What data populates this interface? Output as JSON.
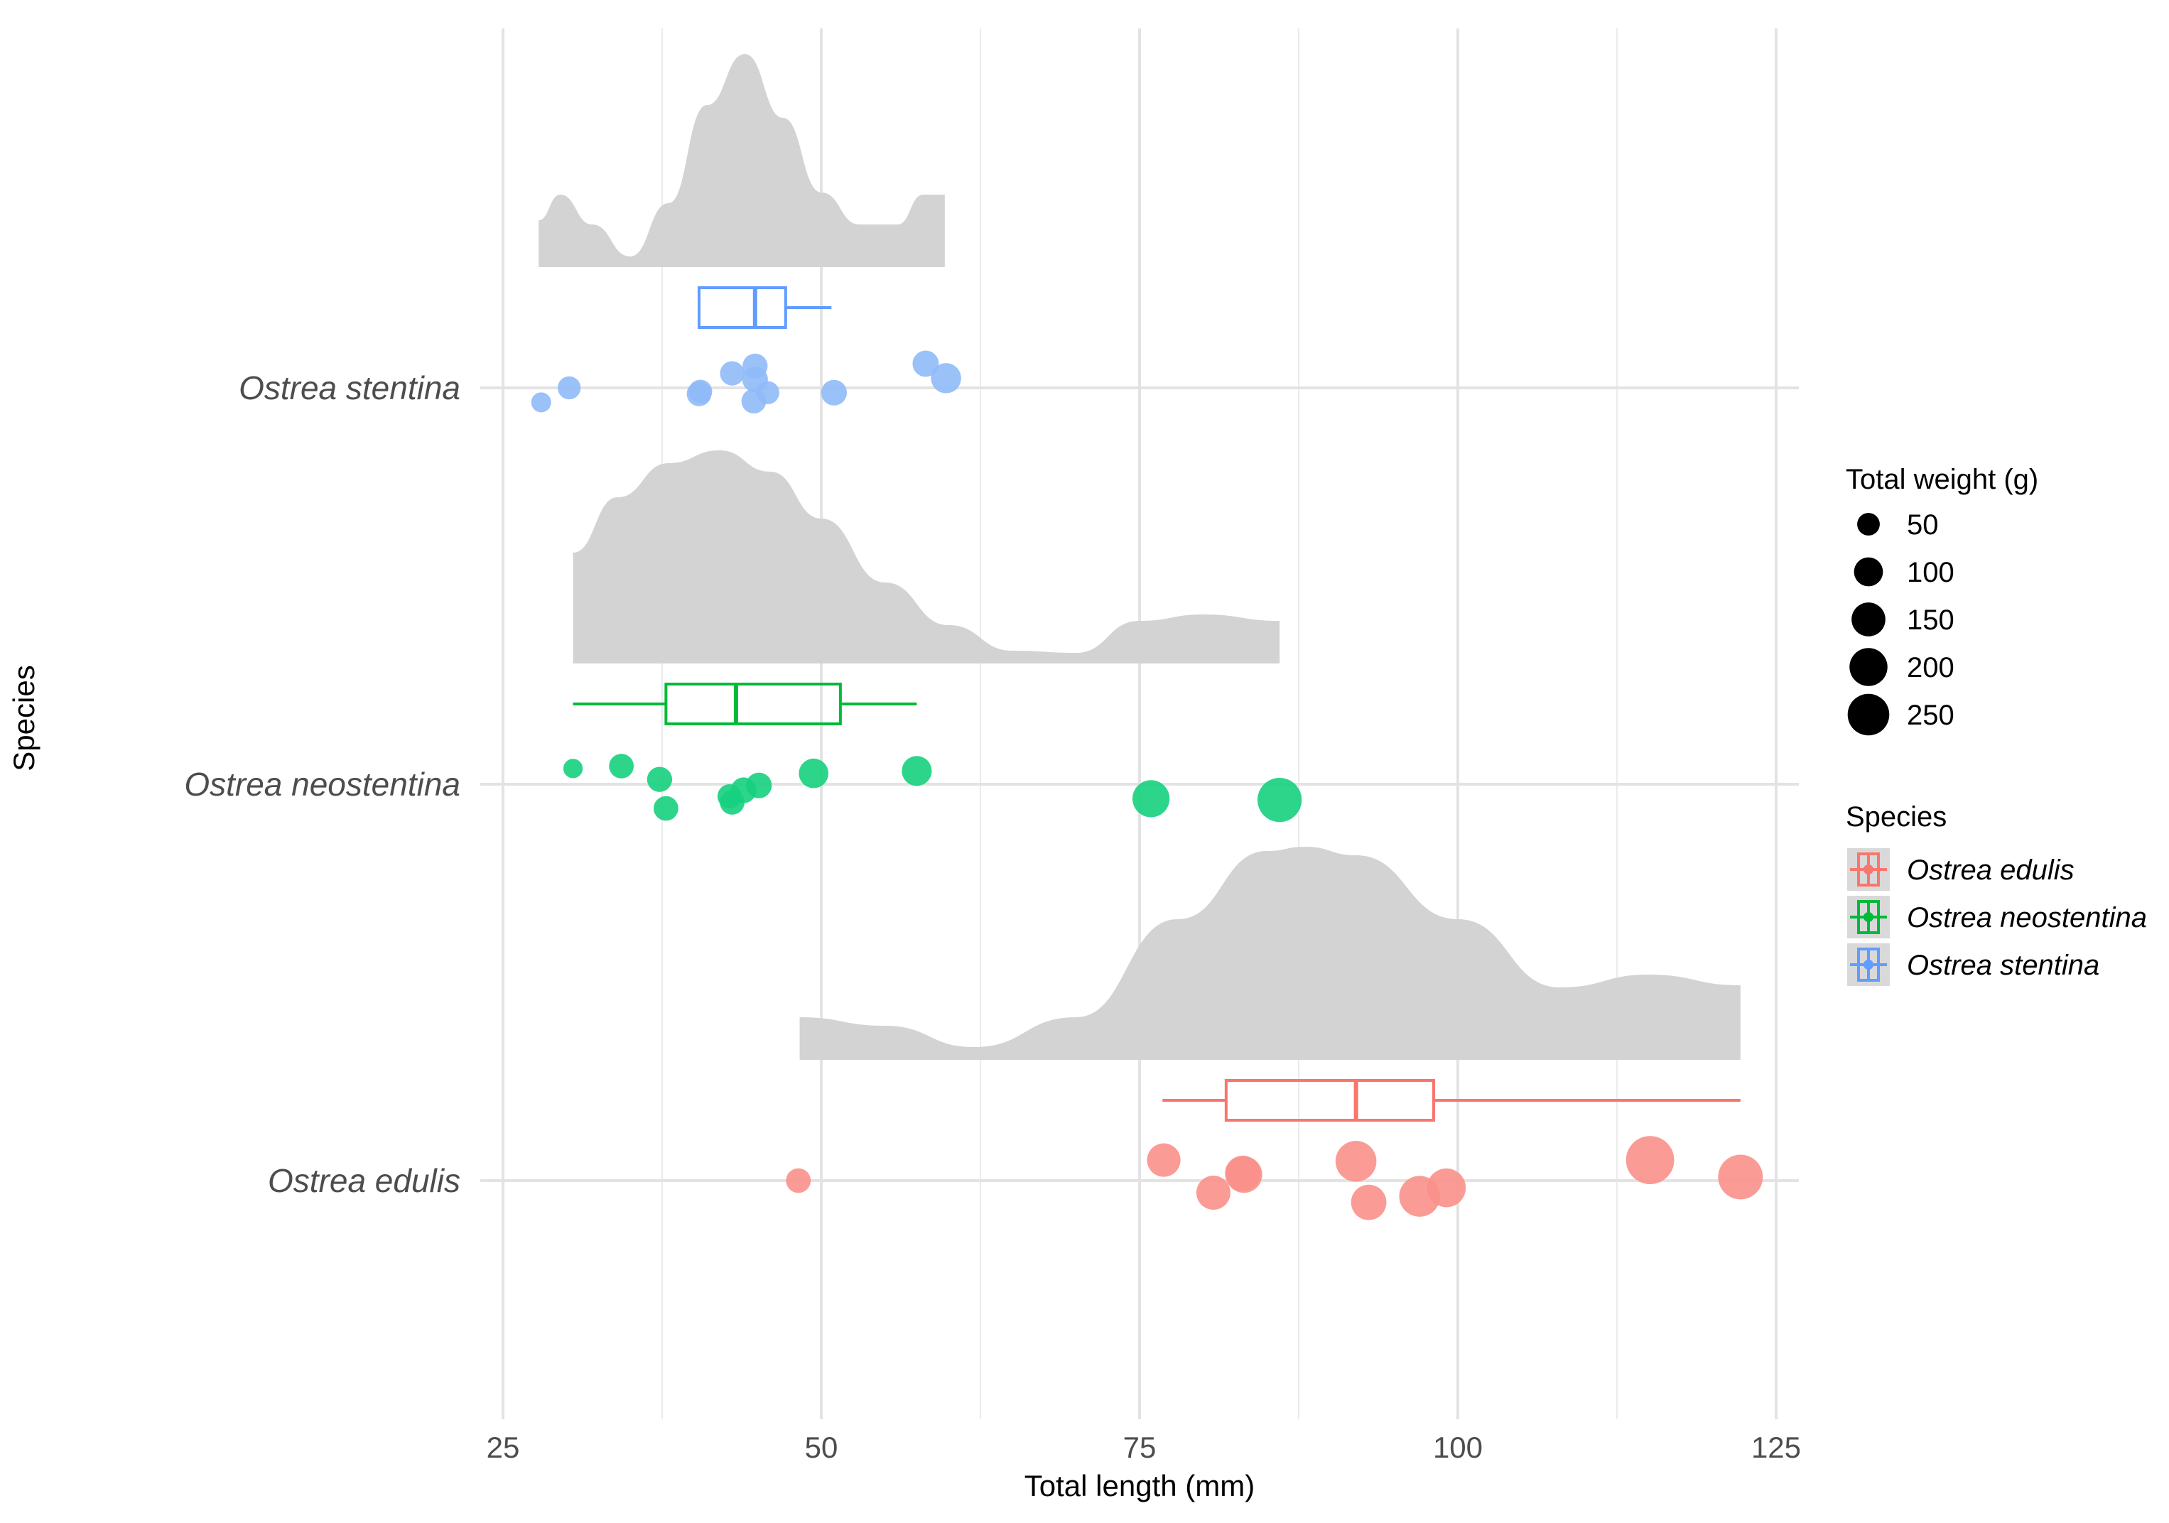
{
  "chart_data": {
    "type": "raincloud",
    "title": "",
    "xlabel": "Total length (mm)",
    "ylabel": "Species",
    "xlim": [
      22,
      126
    ],
    "x_ticks": [
      25,
      50,
      75,
      100,
      125
    ],
    "x_tick_labels": [
      "25",
      "50",
      "75",
      "100",
      "125"
    ],
    "minor_x_ticks": [
      37.5,
      62.5,
      87.5,
      112.5
    ],
    "grid": true,
    "size_legend": {
      "title": "Total weight (g)",
      "breaks": [
        50,
        100,
        150,
        200,
        250
      ],
      "labels": [
        "50",
        "100",
        "150",
        "200",
        "250"
      ]
    },
    "color_legend": {
      "title": "Species",
      "labels": [
        "Ostrea edulis",
        "Ostrea neostentina",
        "Ostrea stentina"
      ],
      "colors": [
        "#F8766D",
        "#00BA38",
        "#619CFF"
      ]
    },
    "series": [
      {
        "name": "Ostrea stentina",
        "color": "#619CFF",
        "point_color": "#8FBAF7",
        "box": {
          "min": 40.4,
          "q1": 40.4,
          "median": 44.8,
          "q3": 47.2,
          "max": 50.8
        },
        "density": {
          "x": [
            27.8,
            29.5,
            32.0,
            35.0,
            38.0,
            41.0,
            44.0,
            47.0,
            50.0,
            53.0,
            56.0,
            58.0,
            59.7
          ],
          "y": [
            0.22,
            0.34,
            0.2,
            0.05,
            0.3,
            0.76,
            1.0,
            0.7,
            0.35,
            0.2,
            0.2,
            0.34,
            0.34
          ]
        },
        "points": [
          {
            "x": 28.0,
            "jitter": -0.12,
            "weight": 20
          },
          {
            "x": 30.2,
            "jitter": 0.0,
            "weight": 32
          },
          {
            "x": 40.4,
            "jitter": -0.05,
            "weight": 40
          },
          {
            "x": 40.5,
            "jitter": -0.03,
            "weight": 35
          },
          {
            "x": 43.0,
            "jitter": 0.12,
            "weight": 38
          },
          {
            "x": 44.8,
            "jitter": 0.18,
            "weight": 42
          },
          {
            "x": 44.8,
            "jitter": 0.07,
            "weight": 45
          },
          {
            "x": 44.7,
            "jitter": -0.11,
            "weight": 40
          },
          {
            "x": 45.8,
            "jitter": -0.04,
            "weight": 32
          },
          {
            "x": 51.0,
            "jitter": -0.04,
            "weight": 45
          },
          {
            "x": 58.2,
            "jitter": 0.2,
            "weight": 48
          },
          {
            "x": 59.8,
            "jitter": 0.08,
            "weight": 72
          }
        ]
      },
      {
        "name": "Ostrea neostentina",
        "color": "#00BA38",
        "point_color": "#16D07E",
        "box": {
          "min": 30.5,
          "q1": 37.8,
          "median": 43.3,
          "q3": 51.5,
          "max": 57.5
        },
        "density": {
          "x": [
            30.5,
            34.0,
            38.0,
            42.0,
            46.0,
            50.0,
            55.0,
            60.0,
            65.0,
            70.0,
            75.0,
            80.0,
            86.0
          ],
          "y": [
            0.52,
            0.78,
            0.94,
            1.0,
            0.9,
            0.68,
            0.38,
            0.18,
            0.06,
            0.05,
            0.2,
            0.23,
            0.2
          ]
        },
        "points": [
          {
            "x": 30.5,
            "jitter": 0.13,
            "weight": 18
          },
          {
            "x": 34.3,
            "jitter": 0.15,
            "weight": 40
          },
          {
            "x": 37.3,
            "jitter": 0.04,
            "weight": 42
          },
          {
            "x": 37.8,
            "jitter": -0.2,
            "weight": 40
          },
          {
            "x": 42.8,
            "jitter": -0.1,
            "weight": 38
          },
          {
            "x": 43.0,
            "jitter": -0.15,
            "weight": 40
          },
          {
            "x": 43.9,
            "jitter": -0.05,
            "weight": 45
          },
          {
            "x": 45.1,
            "jitter": -0.01,
            "weight": 45
          },
          {
            "x": 49.4,
            "jitter": 0.09,
            "weight": 68
          },
          {
            "x": 57.5,
            "jitter": 0.11,
            "weight": 70
          },
          {
            "x": 75.9,
            "jitter": -0.12,
            "weight": 125
          },
          {
            "x": 86.0,
            "jitter": -0.13,
            "weight": 195
          }
        ]
      },
      {
        "name": "Ostrea edulis",
        "color": "#F8766D",
        "point_color": "#F9908A",
        "box": {
          "min": 76.8,
          "q1": 81.8,
          "median": 92.0,
          "q3": 98.1,
          "max": 122.2
        },
        "density": {
          "x": [
            48.3,
            55.0,
            62.0,
            70.0,
            78.0,
            85.0,
            88.0,
            92.0,
            100.0,
            108.0,
            115.0,
            122.2
          ],
          "y": [
            0.2,
            0.16,
            0.06,
            0.2,
            0.66,
            0.98,
            1.0,
            0.96,
            0.66,
            0.34,
            0.4,
            0.35
          ]
        },
        "points": [
          {
            "x": 48.2,
            "jitter": 0.0,
            "weight": 40
          },
          {
            "x": 76.9,
            "jitter": 0.17,
            "weight": 95
          },
          {
            "x": 80.8,
            "jitter": -0.1,
            "weight": 100
          },
          {
            "x": 83.1,
            "jitter": 0.06,
            "weight": 110
          },
          {
            "x": 83.2,
            "jitter": 0.05,
            "weight": 120
          },
          {
            "x": 92.0,
            "jitter": 0.16,
            "weight": 160
          },
          {
            "x": 93.0,
            "jitter": -0.18,
            "weight": 110
          },
          {
            "x": 97.0,
            "jitter": -0.13,
            "weight": 160
          },
          {
            "x": 99.1,
            "jitter": -0.06,
            "weight": 140
          },
          {
            "x": 115.1,
            "jitter": 0.17,
            "weight": 240
          },
          {
            "x": 122.2,
            "jitter": 0.03,
            "weight": 200
          }
        ]
      }
    ]
  }
}
